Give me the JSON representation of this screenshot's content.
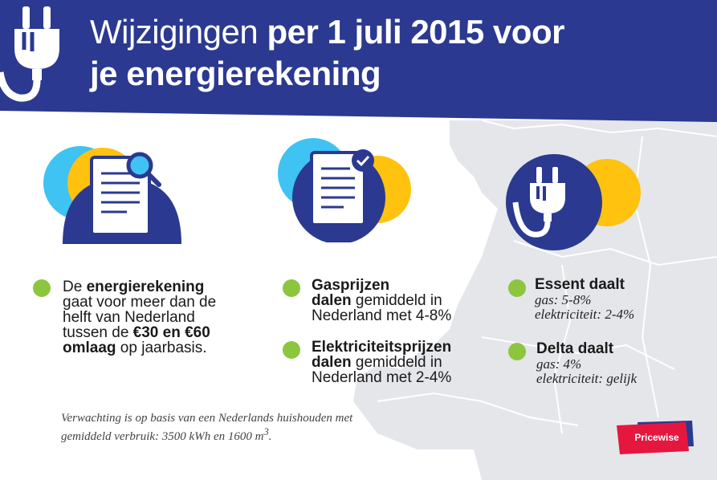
{
  "header": {
    "title_thin": "Wijzigingen ",
    "title_bold_1": "per 1 juli 2015 voor",
    "title_bold_2": "je energierekening",
    "colors": {
      "navy": "#2b3990",
      "yellow": "#ffc20e",
      "cyan": "#3ec3f2",
      "green": "#8cc63f",
      "red": "#e5173f"
    }
  },
  "col1": {
    "t1": "De ",
    "b1": "energierekening",
    "t2": "gaat voor meer dan de",
    "t3": "helft van Nederland",
    "t4": "tussen de ",
    "b2": "€30 en €60",
    "b3": "omlaag",
    "t5": " op jaarbasis."
  },
  "col2": {
    "item1": {
      "b1": "Gasprijzen",
      "b2": "dalen",
      "t1": " gemiddeld in",
      "t2": "Nederland met 4-8%"
    },
    "item2": {
      "b1": "Elektriciteitsprijzen",
      "b2": "dalen",
      "t1": " gemiddeld in",
      "t2": "Nederland met 2-4%"
    }
  },
  "col3": {
    "essent": {
      "heading": "Essent daalt",
      "gas": "gas: 5-8%",
      "elec": "elektriciteit: 2-4%"
    },
    "delta": {
      "heading": "Delta daalt",
      "gas": "gas: 4%",
      "elec": "elektriciteit: gelijk"
    }
  },
  "footnote": {
    "line1": "Verwachting is op basis van een Nederlands huishouden met",
    "line2": "gemiddeld verbruik: 3500 kWh en 1600 m",
    "sup": "3",
    "end": "."
  },
  "brand": {
    "name": "Pricewise"
  }
}
